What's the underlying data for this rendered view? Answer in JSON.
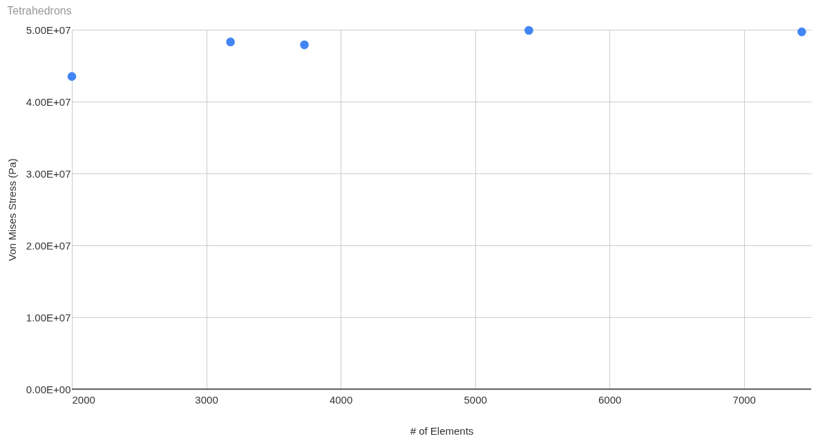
{
  "chart_data": {
    "type": "scatter",
    "title": "Tetrahedrons",
    "xlabel": "# of Elements",
    "ylabel": "Von Mises Stress (Pa)",
    "x": [
      2000,
      3180,
      3730,
      5400,
      7430
    ],
    "series": [
      {
        "color": "#4285f4",
        "values": [
          43500000,
          48300000,
          47900000,
          49900000,
          49700000
        ]
      }
    ],
    "xlim": [
      2000,
      7500
    ],
    "xticks": [
      2000,
      3000,
      4000,
      5000,
      6000,
      7000
    ],
    "ylim": [
      0,
      50000000
    ],
    "yticks": [
      {
        "value": 0,
        "label": "0.00E+00"
      },
      {
        "value": 10000000,
        "label": "1.00E+07"
      },
      {
        "value": 20000000,
        "label": "2.00E+07"
      },
      {
        "value": 30000000,
        "label": "3.00E+07"
      },
      {
        "value": 40000000,
        "label": "4.00E+07"
      },
      {
        "value": 50000000,
        "label": "5.00E+07"
      }
    ],
    "grid": true,
    "marker": "circle",
    "legend": false
  }
}
